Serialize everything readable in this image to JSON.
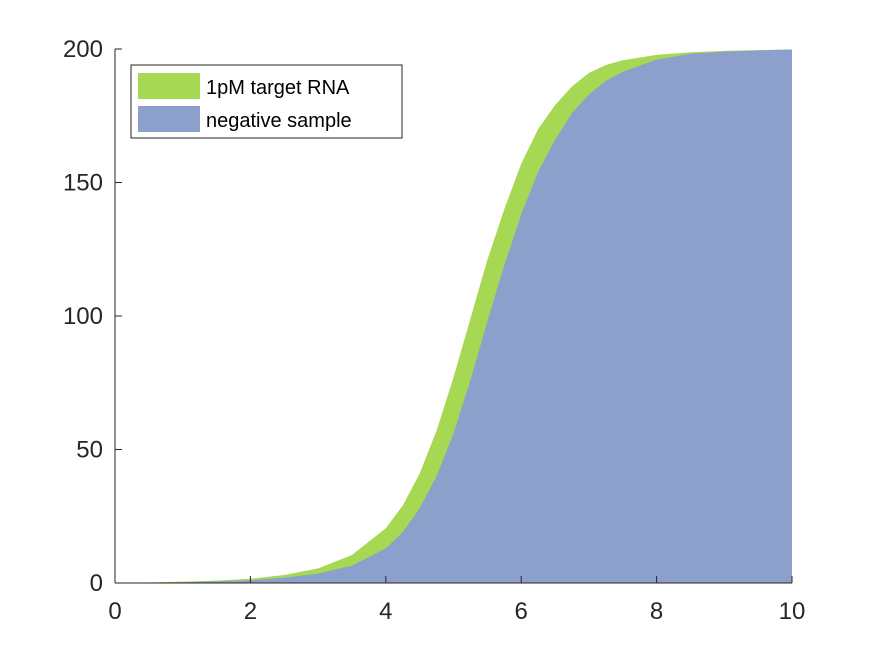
{
  "chart_data": {
    "type": "area",
    "title": "",
    "xlabel": "",
    "ylabel": "",
    "xlim": [
      0,
      10
    ],
    "ylim": [
      0,
      200
    ],
    "xticks": [
      0,
      2,
      4,
      6,
      8,
      10
    ],
    "yticks": [
      0,
      50,
      100,
      150,
      200
    ],
    "grid": false,
    "legend_position": "top-left",
    "x": [
      0,
      0.5,
      1,
      1.5,
      2,
      2.5,
      3,
      3.5,
      4,
      4.25,
      4.5,
      4.75,
      5,
      5.25,
      5.5,
      5.75,
      6,
      6.25,
      6.5,
      6.75,
      7,
      7.25,
      7.5,
      8,
      8.5,
      9,
      9.5,
      10
    ],
    "series": [
      {
        "name": "1pM target RNA",
        "color": "#a6d854",
        "values": [
          0.1,
          0.2,
          0.5,
          0.9,
          1.6,
          3.0,
          5.5,
          10.5,
          20.5,
          29,
          41,
          57,
          77,
          99,
          121,
          140,
          157,
          170,
          179,
          186,
          191,
          194,
          195.8,
          197.8,
          198.8,
          199.3,
          199.6,
          199.8
        ]
      },
      {
        "name": "negative sample",
        "color": "#8da0cb",
        "values": [
          0.05,
          0.1,
          0.3,
          0.6,
          1.0,
          2.0,
          3.5,
          6.5,
          13,
          19,
          28,
          40,
          56,
          76,
          98,
          119,
          138,
          154,
          166,
          176,
          183,
          188,
          191.5,
          196,
          198.2,
          199,
          199.5,
          199.8
        ]
      }
    ]
  }
}
